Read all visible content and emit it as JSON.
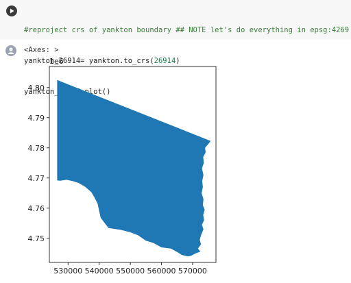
{
  "cell": {
    "code_comment": "#reproject crs of yankton boundary ## NOTE let's do everything in epsg:4269 ###",
    "line2_prefix": "yankton_26914= yankton.to_crs(",
    "line2_number": "26914",
    "line2_suffix": ")",
    "line3": "yankton_26914.plot()"
  },
  "output": {
    "repr": "<Axes: >"
  },
  "chart_data": {
    "type": "area",
    "y_offset_label": "1e6",
    "x_ticks": [
      "530000",
      "540000",
      "550000",
      "560000",
      "570000"
    ],
    "y_ticks": [
      "4.75",
      "4.76",
      "4.77",
      "4.78",
      "4.79",
      "4.80"
    ],
    "xlim": [
      524000,
      577500
    ],
    "ylim": [
      4742000,
      4807000
    ],
    "fill_color": "#1f77b4",
    "polygon": [
      [
        526500,
        4802500
      ],
      [
        575800,
        4782300
      ],
      [
        575200,
        4781500
      ],
      [
        574000,
        4780000
      ],
      [
        574200,
        4778500
      ],
      [
        573400,
        4777000
      ],
      [
        573600,
        4775000
      ],
      [
        573000,
        4773200
      ],
      [
        573500,
        4771000
      ],
      [
        573100,
        4769000
      ],
      [
        573300,
        4767000
      ],
      [
        572900,
        4765000
      ],
      [
        573500,
        4763000
      ],
      [
        573300,
        4761000
      ],
      [
        573900,
        4759500
      ],
      [
        573400,
        4757800
      ],
      [
        573700,
        4756000
      ],
      [
        573000,
        4754500
      ],
      [
        573500,
        4753000
      ],
      [
        572700,
        4751000
      ],
      [
        572300,
        4749500
      ],
      [
        572700,
        4748000
      ],
      [
        571700,
        4746600
      ],
      [
        572500,
        4745600
      ],
      [
        571000,
        4745000
      ],
      [
        569500,
        4744200
      ],
      [
        568500,
        4744000
      ],
      [
        566500,
        4744500
      ],
      [
        565000,
        4745500
      ],
      [
        563000,
        4746600
      ],
      [
        560000,
        4747000
      ],
      [
        557500,
        4748400
      ],
      [
        555000,
        4749200
      ],
      [
        552500,
        4751000
      ],
      [
        550000,
        4752000
      ],
      [
        547000,
        4752800
      ],
      [
        543000,
        4753400
      ],
      [
        541800,
        4755000
      ],
      [
        540500,
        4756800
      ],
      [
        540000,
        4759000
      ],
      [
        539500,
        4761500
      ],
      [
        538500,
        4763500
      ],
      [
        537500,
        4765300
      ],
      [
        535500,
        4767100
      ],
      [
        533500,
        4768300
      ],
      [
        531500,
        4769000
      ],
      [
        529500,
        4769400
      ],
      [
        527500,
        4769100
      ],
      [
        526500,
        4769200
      ]
    ]
  }
}
